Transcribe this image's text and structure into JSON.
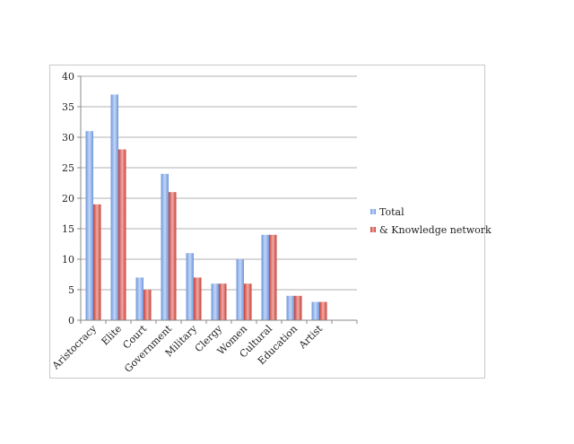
{
  "chart_data": {
    "type": "bar",
    "categories": [
      "Aristocracy",
      "Elite",
      "Court",
      "Government",
      "Military",
      "Clergy",
      "Women",
      "Cultural",
      "Education",
      "Artist"
    ],
    "series": [
      {
        "name": "Total",
        "values": [
          31,
          37,
          7,
          24,
          11,
          6,
          10,
          14,
          4,
          3
        ],
        "color": "#7ea6e6"
      },
      {
        "name": "& Knowledge network",
        "values": [
          19,
          28,
          5,
          21,
          7,
          6,
          6,
          14,
          4,
          3
        ],
        "color": "#d9605a"
      }
    ],
    "ylim": [
      0,
      40
    ],
    "yticks": [
      0,
      5,
      10,
      15,
      20,
      25,
      30,
      35,
      40
    ],
    "grid": true,
    "legend": "right"
  }
}
